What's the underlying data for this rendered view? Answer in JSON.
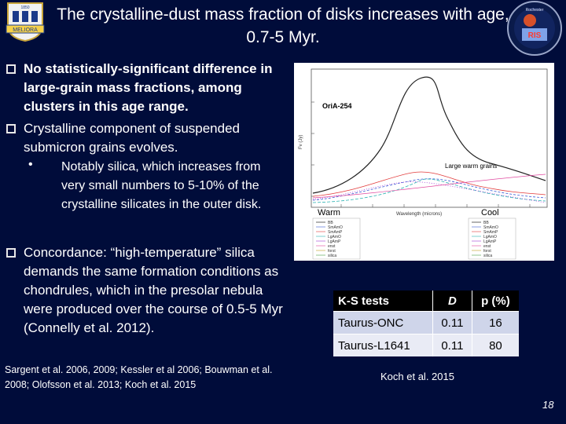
{
  "title": "The crystalline-dust mass fraction of disks increases with age, 0.7-5 Myr.",
  "logos": {
    "left_text": "MELIORA",
    "left_year": "1850",
    "right_text": "Rochester"
  },
  "bullets": [
    {
      "text": "No statistically-significant difference in large-grain mass fractions, among clusters in this age range.",
      "bold": true
    },
    {
      "text": "Crystalline component of suspended submicron grains evolves.",
      "bold": false
    },
    {
      "text": "Concordance: “high-temperature” silica demands the same formation conditions as chondrules, which in the presolar nebula were produced over the course of 0.5-5 Myr (Connelly et al. 2012).",
      "bold": false
    }
  ],
  "sub_bullet": "Notably silica, which increases from very small numbers to 5-10% of the crystalline silicates in the outer disk.",
  "references": "Sargent et al. 2006, 2009; Kessler et al 2006; Bouwman et al. 2008; Olofsson et al. 2013; Koch et al. 2015",
  "figure": {
    "label": "OriA-254",
    "annotation": "Large warm grains",
    "warm_label": "Warm",
    "cool_label": "Cool",
    "xlabel": "Wavelength (microns)",
    "ylabel": "Fν (Jy)",
    "legend_items": [
      "BB",
      "SmAmO",
      "SmAmP",
      "LgAmO",
      "LgAmP",
      "enst",
      "forst",
      "silica"
    ]
  },
  "table": {
    "headers": [
      "K-S tests",
      "D",
      "p (%)"
    ],
    "rows": [
      [
        "Taurus-ONC",
        "0.11",
        "16"
      ],
      [
        "Taurus-L1641",
        "0.11",
        "80"
      ]
    ]
  },
  "caption": "Koch et al. 2015",
  "page_number": "18"
}
